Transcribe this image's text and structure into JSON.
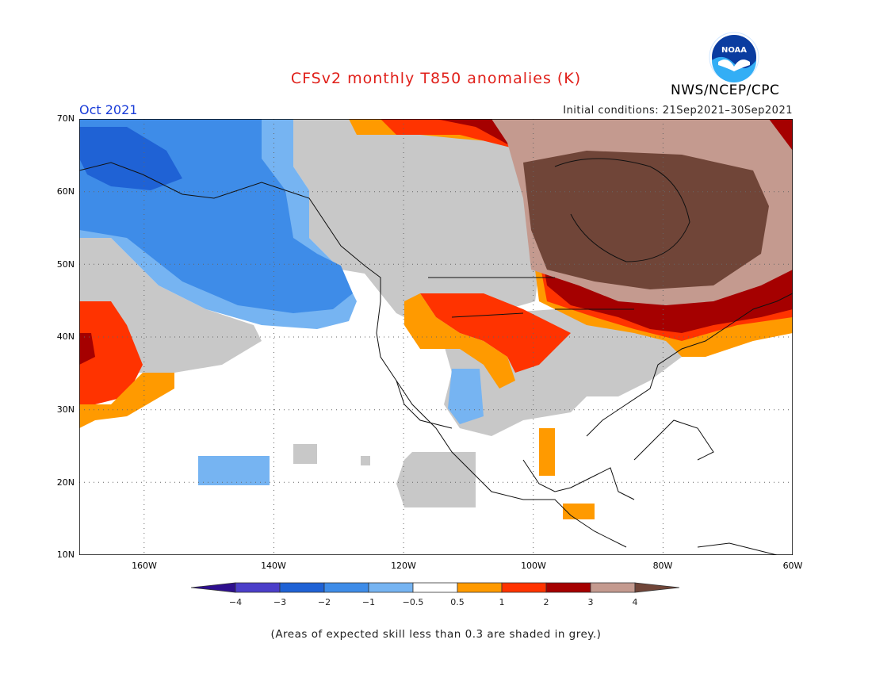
{
  "header": {
    "title": "CFSv2 monthly T850 anomalies (K)",
    "month": "Oct 2021",
    "initial_conditions": "Initial conditions: 21Sep2021–30Sep2021",
    "organization": "NWS/NCEP/CPC",
    "logo_text": "NOAA"
  },
  "map": {
    "lat_labels": [
      "70N",
      "60N",
      "50N",
      "40N",
      "30N",
      "20N",
      "10N"
    ],
    "lon_labels": [
      "160W",
      "140W",
      "120W",
      "100W",
      "80W",
      "60W"
    ]
  },
  "legend": {
    "boundaries": [
      "−4",
      "−3",
      "−2",
      "−1",
      "−0.5",
      "0.5",
      "1",
      "2",
      "3",
      "4"
    ],
    "colors": [
      "#2e0f8e",
      "#4b3ec9",
      "#1f62d5",
      "#3e8ce8",
      "#76b4f2",
      "#ffffff",
      "#ff9a00",
      "#ff3300",
      "#a50000",
      "#c49a8f",
      "#704538"
    ],
    "units": "K"
  },
  "note": "(Areas of expected skill less than 0.3 are shaded in grey.)",
  "colors": {
    "title": "#e0201a",
    "month": "#1a3cd8",
    "skill_grey": "#c8c8c8"
  }
}
